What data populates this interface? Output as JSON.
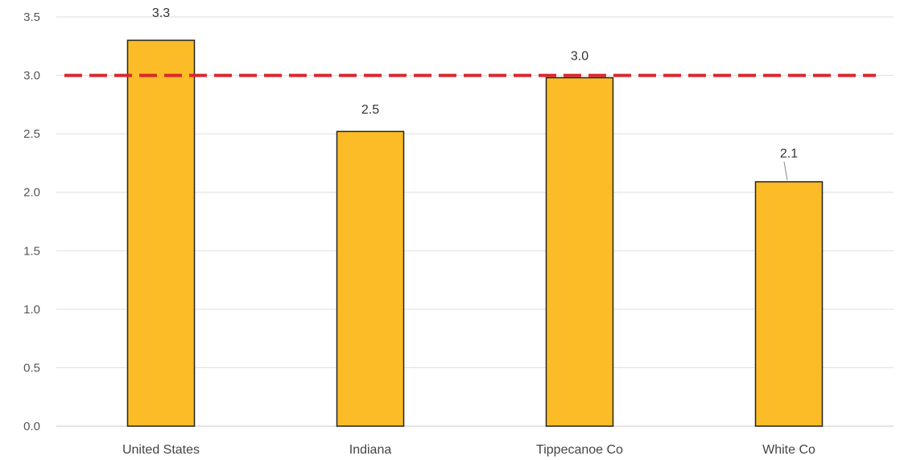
{
  "chart_data": {
    "type": "bar",
    "categories": [
      "United States",
      "Indiana",
      "Tippecanoe Co",
      "White Co"
    ],
    "values": [
      3.3,
      2.52,
      2.98,
      2.09
    ],
    "data_labels": [
      "3.3",
      "2.5",
      "3.0",
      "2.1"
    ],
    "title": "",
    "xlabel": "",
    "ylabel": "",
    "ylim": [
      0,
      3.5
    ],
    "yticks": [
      "0.0",
      "0.5",
      "1.0",
      "1.5",
      "2.0",
      "2.5",
      "3.0",
      "3.5"
    ],
    "reference_line": {
      "value": 3.0,
      "style": "dashed",
      "color": "#d9272e"
    },
    "grid": true,
    "legend": "none",
    "bar_color": "#fbbc27",
    "bar_edge_color": "#222222"
  }
}
